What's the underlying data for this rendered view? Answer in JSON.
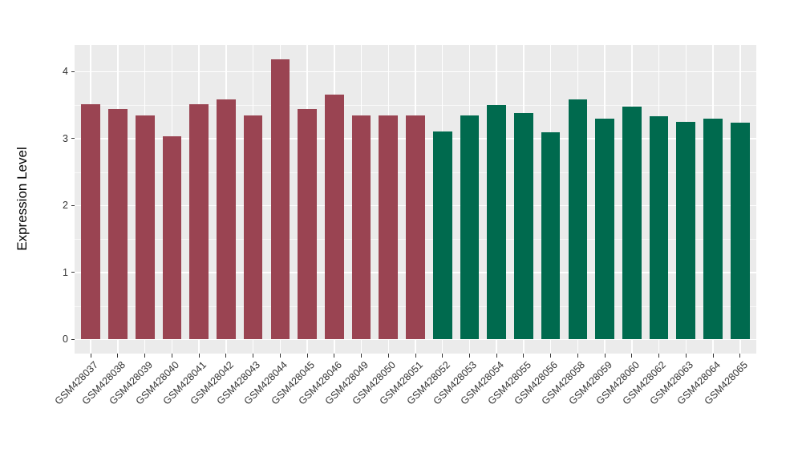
{
  "chart_data": {
    "type": "bar",
    "title": "",
    "xlabel": "",
    "ylabel": "Expression Level",
    "ylim": [
      0,
      4.39
    ],
    "yticks": [
      0,
      1,
      2,
      3,
      4
    ],
    "yticks_minor": [
      0.5,
      1.5,
      2.5,
      3.5
    ],
    "grid": "white major and minor horizontal lines, white vertical lines at each category center, on light gray panel",
    "legend_position": "none",
    "categories": [
      "GSM428037",
      "GSM428038",
      "GSM428039",
      "GSM428040",
      "GSM428041",
      "GSM428042",
      "GSM428043",
      "GSM428044",
      "GSM428045",
      "GSM428046",
      "GSM428049",
      "GSM428050",
      "GSM428051",
      "GSM428052",
      "GSM428053",
      "GSM428054",
      "GSM428055",
      "GSM428056",
      "GSM428058",
      "GSM428059",
      "GSM428060",
      "GSM428062",
      "GSM428063",
      "GSM428064",
      "GSM428065"
    ],
    "values": [
      3.51,
      3.44,
      3.34,
      3.03,
      3.51,
      3.58,
      3.35,
      4.18,
      3.44,
      3.66,
      3.34,
      3.35,
      3.35,
      3.1,
      3.34,
      3.5,
      3.38,
      3.09,
      3.58,
      3.3,
      3.48,
      3.33,
      3.25,
      3.3,
      3.24
    ],
    "bar_group": [
      0,
      0,
      0,
      0,
      0,
      0,
      0,
      0,
      0,
      0,
      0,
      0,
      0,
      1,
      1,
      1,
      1,
      1,
      1,
      1,
      1,
      1,
      1,
      1,
      1
    ],
    "group_colors": [
      "#9A4452",
      "#006A4E"
    ]
  },
  "colors": {
    "panel_background": "#EBEBEB",
    "gridline": "#FFFFFF",
    "tick_label": "#333333",
    "axis_title": "#000000",
    "figure_background": "#FFFFFF",
    "bar_maroon": "#9A4452",
    "bar_green": "#006A4E"
  }
}
